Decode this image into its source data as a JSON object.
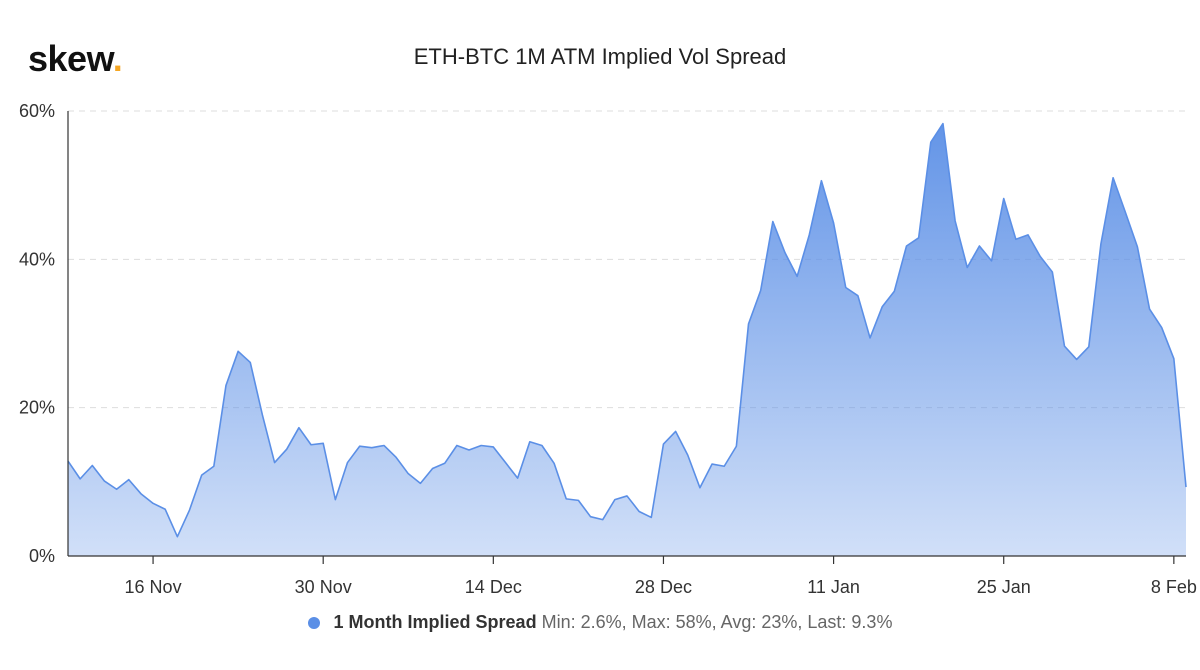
{
  "logo": {
    "text": "skew",
    "dot": "."
  },
  "chart_data": {
    "type": "area",
    "title": "ETH-BTC 1M ATM Implied Vol Spread",
    "x_labels": [
      "16 Nov",
      "30 Nov",
      "14 Dec",
      "28 Dec",
      "11 Jan",
      "25 Jan",
      "8 Feb"
    ],
    "y_ticks": [
      "0%",
      "20%",
      "40%",
      "60%"
    ],
    "ylim": [
      0,
      60
    ],
    "grid": true,
    "legend_position": "bottom",
    "series": [
      {
        "name": "1 Month Implied Spread",
        "color": "#5b8fe6",
        "x_start": "2020-11-09",
        "x_end": "2021-02-09",
        "values": [
          12.8,
          10.4,
          12.2,
          10.1,
          9.0,
          10.3,
          8.4,
          7.1,
          6.3,
          2.6,
          6.2,
          10.9,
          12.1,
          23.0,
          27.6,
          26.1,
          19.0,
          12.6,
          14.4,
          17.3,
          15.0,
          15.2,
          7.6,
          12.6,
          14.8,
          14.6,
          14.9,
          13.3,
          11.1,
          9.8,
          11.8,
          12.5,
          14.9,
          14.3,
          14.9,
          14.7,
          12.6,
          10.5,
          15.4,
          14.9,
          12.5,
          7.7,
          7.5,
          5.3,
          4.9,
          7.6,
          8.1,
          6.0,
          5.2,
          15.1,
          16.8,
          13.6,
          9.2,
          12.4,
          12.1,
          14.8,
          31.3,
          35.8,
          45.1,
          40.9,
          37.7,
          43.3,
          50.6,
          44.9,
          36.2,
          35.1,
          29.4,
          33.6,
          35.7,
          41.8,
          42.9,
          55.8,
          58.3,
          45.2,
          38.9,
          41.8,
          39.8,
          48.2,
          42.7,
          43.3,
          40.4,
          38.3,
          28.3,
          26.5,
          28.2,
          42.1,
          51.0,
          46.4,
          41.7,
          33.3,
          30.8,
          26.6,
          9.3
        ]
      }
    ],
    "stats": {
      "min": "2.6%",
      "max": "58%",
      "avg": "23%",
      "last": "9.3%"
    }
  },
  "legend": {
    "series_name": "1 Month Implied Spread",
    "stats_text": "Min: 2.6%, Max: 58%, Avg: 23%, Last: 9.3%"
  }
}
